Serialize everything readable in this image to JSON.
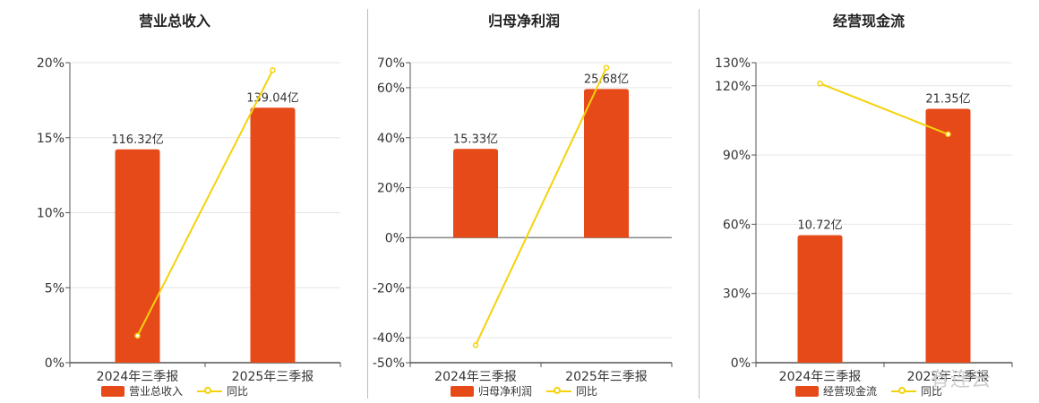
{
  "colors": {
    "bar": "#e64a19",
    "line": "#f5d20a",
    "axis": "#555555",
    "grid": "#e6e6e6",
    "zero": "#888888"
  },
  "legend_line_label": "同比",
  "watermark": "有连云",
  "chart_data": [
    {
      "type": "bar",
      "title": "营业总收入",
      "categories": [
        "2024年三季报",
        "2025年三季报"
      ],
      "bar_values": [
        116.32,
        139.04
      ],
      "bar_labels": [
        "116.32亿",
        "139.04亿"
      ],
      "bar_series_name": "营业总收入",
      "line_series_name": "同比",
      "line_values": [
        1.8,
        19.5
      ],
      "ylim": [
        0,
        20
      ],
      "yticks": [
        0,
        5,
        10,
        15,
        20
      ],
      "ytick_labels": [
        "0%",
        "5%",
        "10%",
        "15%",
        "20%"
      ]
    },
    {
      "type": "bar",
      "title": "归母净利润",
      "categories": [
        "2024年三季报",
        "2025年三季报"
      ],
      "bar_values": [
        15.33,
        25.68
      ],
      "bar_labels": [
        "15.33亿",
        "25.68亿"
      ],
      "bar_series_name": "归母净利润",
      "line_series_name": "同比",
      "line_values": [
        -43,
        68
      ],
      "ylim": [
        -50,
        70
      ],
      "yticks": [
        -50,
        -40,
        -20,
        0,
        20,
        40,
        60,
        70
      ],
      "ytick_labels": [
        "-50%",
        "-40%",
        "-20%",
        "0%",
        "20%",
        "40%",
        "60%",
        "70%"
      ]
    },
    {
      "type": "bar",
      "title": "经营现金流",
      "categories": [
        "2024年三季报",
        "2025年三季报"
      ],
      "bar_values": [
        10.72,
        21.35
      ],
      "bar_labels": [
        "10.72亿",
        "21.35亿"
      ],
      "bar_series_name": "经营现金流",
      "line_series_name": "同比",
      "line_values": [
        121,
        99
      ],
      "ylim": [
        0,
        130
      ],
      "yticks": [
        0,
        30,
        60,
        90,
        120,
        130
      ],
      "ytick_labels": [
        "0%",
        "30%",
        "60%",
        "90%",
        "120%",
        "130%"
      ]
    }
  ]
}
